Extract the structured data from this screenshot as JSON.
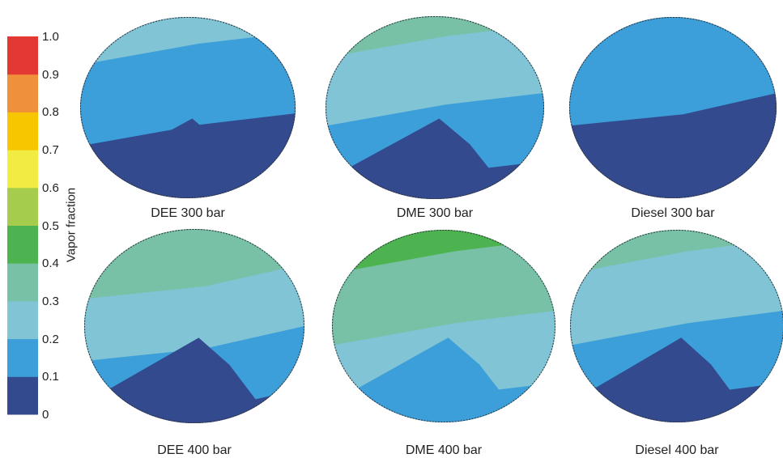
{
  "chart_data": {
    "type": "heatmap",
    "colorbar": {
      "label": "Vapor fraction",
      "range": [
        0,
        1.0
      ],
      "ticks": [
        "0",
        "0.1",
        "0.2",
        "0.3",
        "0.4",
        "0.5",
        "0.6",
        "0.7",
        "0.8",
        "0.9",
        "1.0"
      ],
      "colors": [
        "#334a8f",
        "#3d9fd9",
        "#80c4d6",
        "#78c1a7",
        "#4db350",
        "#a5cc4c",
        "#f2ec42",
        "#f7c600",
        "#ef903a",
        "#e23a33"
      ]
    },
    "panels": [
      {
        "label": "DEE 300 bar",
        "bands_top_to_bottom": [
          0.2,
          0.15,
          0.1,
          0.05,
          0.0
        ]
      },
      {
        "label": "DME 300 bar",
        "bands_top_to_bottom": [
          0.3,
          0.25,
          0.2,
          0.15,
          0.1,
          0.05
        ]
      },
      {
        "label": "Diesel 300 bar",
        "bands_top_to_bottom": [
          0.15,
          0.1,
          0.05,
          0.0
        ]
      },
      {
        "label": "DEE 400 bar",
        "bands_top_to_bottom": [
          0.35,
          0.3,
          0.25,
          0.2,
          0.15,
          0.1,
          0.05
        ]
      },
      {
        "label": "DME 400 bar",
        "bands_top_to_bottom": [
          0.4,
          0.35,
          0.3,
          0.25,
          0.2,
          0.1
        ]
      },
      {
        "label": "Diesel 400 bar",
        "bands_top_to_bottom": [
          0.3,
          0.25,
          0.2,
          0.15,
          0.1,
          0.05
        ]
      }
    ]
  }
}
